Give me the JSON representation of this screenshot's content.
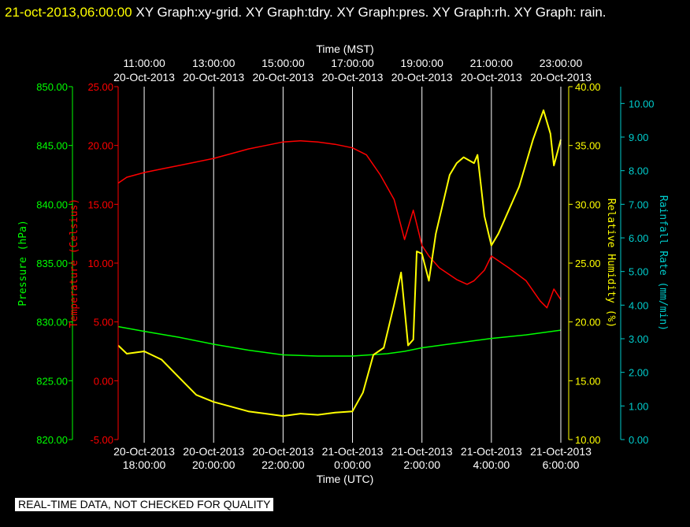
{
  "header": {
    "timestamp": "21-oct-2013,06:00:00",
    "graph_list": "XY Graph:xy-grid.  XY Graph:tdry.  XY Graph:pres.  XY Graph:rh.  XY Graph: rain."
  },
  "footer": {
    "qc_notice": "REAL-TIME DATA, NOT CHECKED FOR QUALITY"
  },
  "colors": {
    "pressure": "#00ff00",
    "temperature": "#ff0000",
    "humidity": "#ffff00",
    "rain": "#00cccc",
    "grid": "#ffffff",
    "background": "#000000"
  },
  "chart_data": {
    "type": "line",
    "grid": true,
    "x_bottom": {
      "label": "Time (UTC)",
      "range_hours": [
        17.25,
        30.0
      ],
      "ticks": [
        {
          "hour": 18,
          "date": "20-Oct-2013",
          "time": "18:00:00"
        },
        {
          "hour": 20,
          "date": "20-Oct-2013",
          "time": "20:00:00"
        },
        {
          "hour": 22,
          "date": "20-Oct-2013",
          "time": "22:00:00"
        },
        {
          "hour": 24,
          "date": "21-Oct-2013",
          "time": "0:00:00"
        },
        {
          "hour": 26,
          "date": "21-Oct-2013",
          "time": "2:00:00"
        },
        {
          "hour": 28,
          "date": "21-Oct-2013",
          "time": "4:00:00"
        },
        {
          "hour": 30,
          "date": "21-Oct-2013",
          "time": "6:00:00"
        }
      ]
    },
    "x_top": {
      "label": "Time (MST)",
      "ticks": [
        {
          "hour": 18,
          "date": "20-Oct-2013",
          "time": "11:00:00"
        },
        {
          "hour": 20,
          "date": "20-Oct-2013",
          "time": "13:00:00"
        },
        {
          "hour": 22,
          "date": "20-Oct-2013",
          "time": "15:00:00"
        },
        {
          "hour": 24,
          "date": "20-Oct-2013",
          "time": "17:00:00"
        },
        {
          "hour": 26,
          "date": "20-Oct-2013",
          "time": "19:00:00"
        },
        {
          "hour": 28,
          "date": "20-Oct-2013",
          "time": "21:00:00"
        },
        {
          "hour": 30,
          "date": "20-Oct-2013",
          "time": "23:00:00"
        }
      ]
    },
    "axes": {
      "pressure": {
        "label": "Pressure (hPa)",
        "range": [
          820,
          850
        ],
        "ticks": [
          "820.00",
          "825.00",
          "830.00",
          "835.00",
          "840.00",
          "845.00",
          "850.00"
        ]
      },
      "temperature": {
        "label": "Temperature (Celsius)",
        "range": [
          -5,
          25
        ],
        "ticks": [
          "-5.00",
          "0.00",
          "5.00",
          "10.00",
          "15.00",
          "20.00",
          "25.00"
        ]
      },
      "humidity": {
        "label": "Relative Humidity (%)",
        "range": [
          10,
          40
        ],
        "ticks": [
          "10.00",
          "15.00",
          "20.00",
          "25.00",
          "30.00",
          "35.00",
          "40.00"
        ]
      },
      "rain": {
        "label": "Rainfall Rate (mm/min)",
        "range": [
          0,
          10.5
        ],
        "ticks": [
          "0.00",
          "1.00",
          "2.00",
          "3.00",
          "4.00",
          "5.00",
          "6.00",
          "7.00",
          "8.00",
          "9.00",
          "10.00"
        ]
      }
    },
    "series": [
      {
        "name": "Pressure",
        "axis": "pressure",
        "x": [
          17.25,
          18.0,
          19.0,
          20.0,
          21.0,
          22.0,
          23.0,
          24.0,
          25.0,
          25.5,
          26.0,
          27.0,
          28.0,
          29.0,
          30.0
        ],
        "y": [
          829.6,
          829.2,
          828.7,
          828.1,
          827.6,
          827.2,
          827.1,
          827.1,
          827.3,
          827.5,
          827.8,
          828.2,
          828.6,
          828.9,
          829.3
        ]
      },
      {
        "name": "Temperature",
        "axis": "temperature",
        "x": [
          17.25,
          17.5,
          18.0,
          18.5,
          19.0,
          19.5,
          20.0,
          20.5,
          21.0,
          21.5,
          22.0,
          22.5,
          23.0,
          23.5,
          24.0,
          24.4,
          24.8,
          25.2,
          25.5,
          25.75,
          26.0,
          26.2,
          26.5,
          27.0,
          27.3,
          27.5,
          27.8,
          28.0,
          28.5,
          29.0,
          29.4,
          29.6,
          29.8,
          30.0
        ],
        "y": [
          16.8,
          17.3,
          17.7,
          18.0,
          18.3,
          18.6,
          18.9,
          19.3,
          19.7,
          20.0,
          20.3,
          20.4,
          20.3,
          20.1,
          19.8,
          19.2,
          17.5,
          15.4,
          12.0,
          14.5,
          11.5,
          10.6,
          9.6,
          8.6,
          8.2,
          8.5,
          9.4,
          10.6,
          9.6,
          8.5,
          6.8,
          6.2,
          7.8,
          6.9
        ]
      },
      {
        "name": "Relative Humidity",
        "axis": "humidity",
        "x": [
          17.25,
          17.5,
          18.0,
          18.5,
          19.0,
          19.5,
          20.0,
          20.5,
          21.0,
          21.5,
          22.0,
          22.5,
          23.0,
          23.5,
          24.0,
          24.3,
          24.6,
          24.9,
          25.2,
          25.4,
          25.6,
          25.75,
          25.85,
          26.0,
          26.2,
          26.4,
          26.6,
          26.8,
          27.0,
          27.2,
          27.5,
          27.6,
          27.8,
          28.0,
          28.2,
          28.5,
          28.8,
          29.0,
          29.2,
          29.5,
          29.7,
          29.8,
          30.0
        ],
        "y": [
          18.0,
          17.3,
          17.5,
          16.8,
          15.3,
          13.8,
          13.2,
          12.8,
          12.4,
          12.2,
          12.0,
          12.2,
          12.1,
          12.3,
          12.4,
          14.0,
          17.2,
          17.8,
          21.5,
          24.2,
          18.0,
          18.5,
          26.0,
          25.8,
          23.5,
          27.5,
          30.0,
          32.5,
          33.5,
          34.0,
          33.5,
          34.2,
          29.0,
          26.5,
          27.5,
          29.5,
          31.5,
          33.5,
          35.5,
          38.0,
          36.0,
          33.3,
          35.5
        ]
      },
      {
        "name": "Rainfall Rate",
        "axis": "rain",
        "x": [
          17.25,
          30.0
        ],
        "y": [
          0.0,
          0.0
        ]
      }
    ]
  }
}
